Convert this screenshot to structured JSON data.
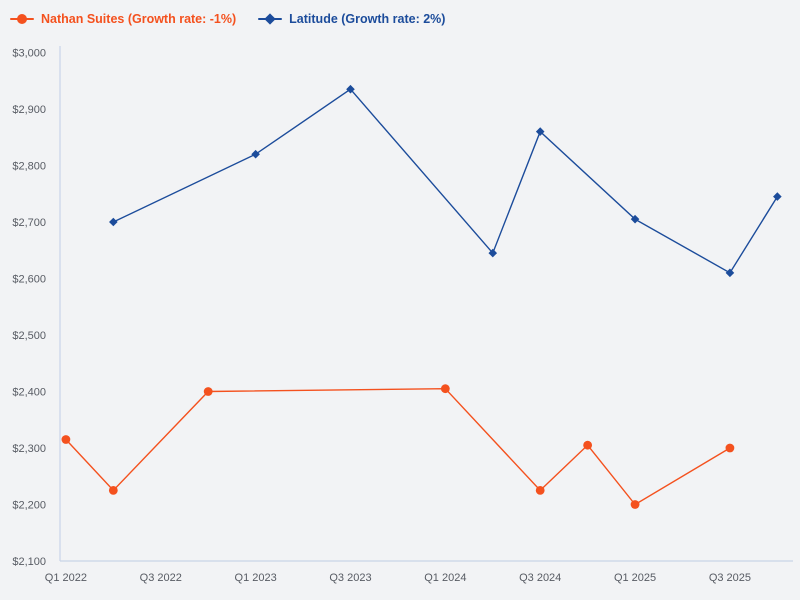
{
  "colors": {
    "background": "#f2f3f5",
    "axis": "#c9d4e8",
    "tick_text": "#575b63",
    "series_orange": "#f4511e",
    "series_blue": "#1c4c9b"
  },
  "legend": [
    {
      "label": "Nathan Suites (Growth rate: -1%)",
      "color": "#f4511e",
      "marker": "circle"
    },
    {
      "label": "Latitude (Growth rate: 2%)",
      "color": "#1c4c9b",
      "marker": "diamond"
    }
  ],
  "chart_data": {
    "type": "line",
    "title": "",
    "xlabel": "",
    "ylabel": "",
    "grid": false,
    "legend_position": "top-left",
    "ylim": [
      2100,
      3000
    ],
    "y_tick_step": 100,
    "y_tick_labels": [
      "$3,000",
      "$2,900",
      "$2,800",
      "$2,700",
      "$2,600",
      "$2,500",
      "$2,400",
      "$2,300",
      "$2,200",
      "$2,100"
    ],
    "categories": [
      "Q1 2022",
      "Q2 2022",
      "Q3 2022",
      "Q4 2022",
      "Q1 2023",
      "Q2 2023",
      "Q3 2023",
      "Q4 2023",
      "Q1 2024",
      "Q2 2024",
      "Q3 2024",
      "Q4 2024",
      "Q1 2025",
      "Q2 2025",
      "Q3 2025",
      "Q4 2025"
    ],
    "x_tick_labels": [
      "Q1 2022",
      "Q3 2022",
      "Q1 2023",
      "Q3 2023",
      "Q1 2024",
      "Q3 2024",
      "Q1 2025",
      "Q3 2025"
    ],
    "series": [
      {
        "name": "Nathan Suites (Growth rate: -1%)",
        "color": "#f4511e",
        "marker": "circle",
        "points": [
          {
            "x": "Q1 2022",
            "y": 2315
          },
          {
            "x": "Q2 2022",
            "y": 2225
          },
          {
            "x": "Q4 2022",
            "y": 2400
          },
          {
            "x": "Q1 2024",
            "y": 2405
          },
          {
            "x": "Q3 2024",
            "y": 2225
          },
          {
            "x": "Q4 2024",
            "y": 2305
          },
          {
            "x": "Q1 2025",
            "y": 2200
          },
          {
            "x": "Q3 2025",
            "y": 2300
          }
        ]
      },
      {
        "name": "Latitude (Growth rate: 2%)",
        "color": "#1c4c9b",
        "marker": "diamond",
        "points": [
          {
            "x": "Q2 2022",
            "y": 2700
          },
          {
            "x": "Q1 2023",
            "y": 2820
          },
          {
            "x": "Q3 2023",
            "y": 2935
          },
          {
            "x": "Q2 2024",
            "y": 2645
          },
          {
            "x": "Q3 2024",
            "y": 2860
          },
          {
            "x": "Q1 2025",
            "y": 2705
          },
          {
            "x": "Q3 2025",
            "y": 2610
          },
          {
            "x": "Q4 2025",
            "y": 2745
          }
        ]
      }
    ]
  }
}
